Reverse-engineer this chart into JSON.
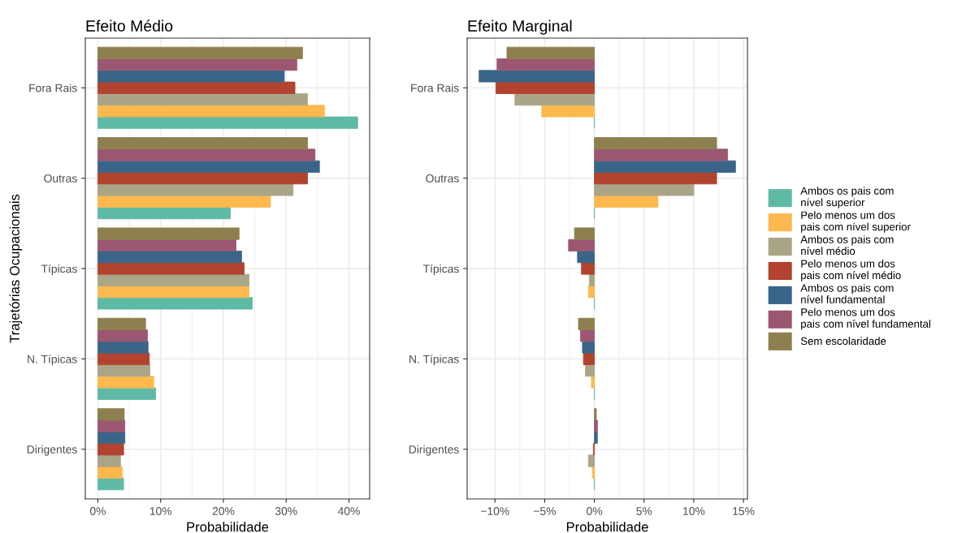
{
  "chart_data": [
    {
      "type": "bar",
      "orientation": "horizontal",
      "title": "Efeito Médio",
      "xlabel": "Probabilidade",
      "ylabel": "Trajetórias Ocupacionais",
      "categories": [
        "Fora Rais",
        "Outras",
        "Típicas",
        "N. Típicas",
        "Dirigentes"
      ],
      "xlim": [
        -2.0,
        43.3
      ],
      "xticks": [
        {
          "value": 0,
          "label": "0%"
        },
        {
          "value": 10,
          "label": "10%"
        },
        {
          "value": 20,
          "label": "20%"
        },
        {
          "value": 30,
          "label": "30%"
        },
        {
          "value": 40,
          "label": "40%"
        }
      ],
      "grid": true,
      "legend": false,
      "series": [
        {
          "color": "#5fbaa5",
          "values": [
            41.4,
            21.1,
            24.6,
            9.2,
            4.1
          ]
        },
        {
          "color": "#fdb94d",
          "values": [
            36.1,
            27.5,
            24.1,
            8.9,
            3.9
          ]
        },
        {
          "color": "#aba588",
          "values": [
            33.4,
            31.1,
            24.1,
            8.3,
            3.6
          ]
        },
        {
          "color": "#b1432f",
          "values": [
            31.4,
            33.4,
            23.3,
            8.2,
            4.1
          ]
        },
        {
          "color": "#3a6589",
          "values": [
            29.7,
            35.3,
            22.9,
            8.0,
            4.3
          ]
        },
        {
          "color": "#9b5772",
          "values": [
            31.7,
            34.6,
            22.0,
            7.9,
            4.3
          ]
        },
        {
          "color": "#8e7f4f",
          "values": [
            32.6,
            33.4,
            22.5,
            7.6,
            4.2
          ]
        }
      ]
    },
    {
      "type": "bar",
      "orientation": "horizontal",
      "title": "Efeito Marginal",
      "xlabel": "Probabilidade",
      "categories": [
        "Fora Rais",
        "Outras",
        "Típicas",
        "N. Típicas",
        "Dirigentes"
      ],
      "xlim": [
        -12.8,
        15.4
      ],
      "xticks": [
        {
          "value": -10,
          "label": "−10%"
        },
        {
          "value": -5,
          "label": "−5%"
        },
        {
          "value": 0,
          "label": "0%"
        },
        {
          "value": 5,
          "label": "5%"
        },
        {
          "value": 10,
          "label": "10%"
        },
        {
          "value": 15,
          "label": "15%"
        }
      ],
      "grid": true,
      "legend": "right",
      "series": [
        {
          "name": "Ambos os pais com\nnível superior",
          "color": "#5fbaa5",
          "values": [
            0,
            0,
            0,
            0,
            0
          ]
        },
        {
          "name": "Pelo menos um dos\npais com nível superior",
          "color": "#fdb94d",
          "values": [
            -5.3,
            6.4,
            -0.6,
            -0.3,
            -0.2
          ]
        },
        {
          "name": "Ambos os pais com\nnível médio",
          "color": "#aba588",
          "values": [
            -8.0,
            10.0,
            -0.5,
            -0.9,
            -0.6
          ]
        },
        {
          "name": "Pelo menos um dos\npais com nível médio",
          "color": "#b1432f",
          "values": [
            -9.9,
            12.3,
            -1.3,
            -1.1,
            -0.1
          ]
        },
        {
          "name": "Ambos os pais com\nnível fundamental",
          "color": "#3a6589",
          "values": [
            -11.6,
            14.2,
            -1.7,
            -1.2,
            0.3
          ]
        },
        {
          "name": "Pelo menos um dos\npais com nível fundamental",
          "color": "#9b5772",
          "values": [
            -9.8,
            13.4,
            -2.6,
            -1.4,
            0.3
          ]
        },
        {
          "name": "Sem escolaridade",
          "color": "#8e7f4f",
          "values": [
            -8.8,
            12.3,
            -2.0,
            -1.6,
            0.2
          ]
        }
      ]
    }
  ]
}
